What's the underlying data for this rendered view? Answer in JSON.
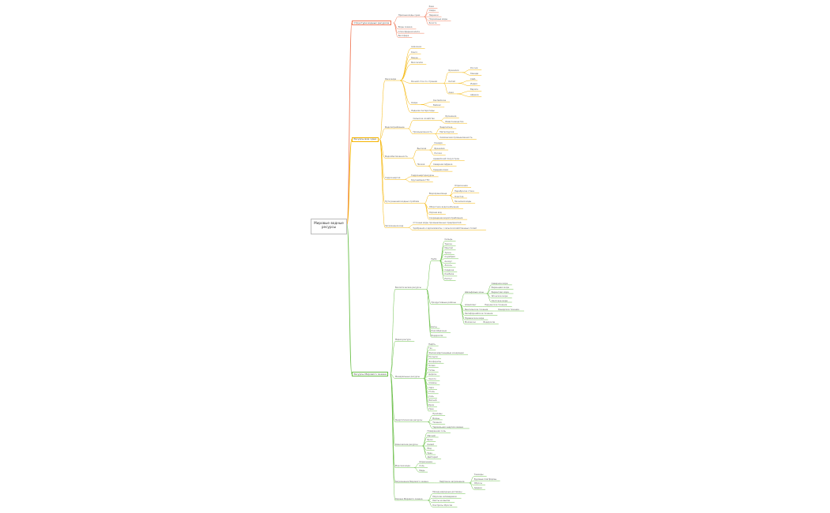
{
  "root": "Мировые водные ресурсы",
  "colors": {
    "branch_red": "#f07b5a",
    "branch_orange": "#f5b400",
    "branch_green": "#6cc04a"
  },
  "branches": [
    {
      "label": "Структура водных ресурсов",
      "color": "#f07b5a",
      "children": [
        {
          "label": "Пресные воды суши",
          "children": [
            {
              "label": "Реки"
            },
            {
              "label": "Озёра"
            },
            {
              "label": "Ледники"
            },
            {
              "label": "Подземные воды"
            },
            {
              "label": "Болота"
            }
          ]
        },
        {
          "label": "Воды океана"
        },
        {
          "label": "Атмосферная влага"
        },
        {
          "label": "Биосфера"
        }
      ]
    },
    {
      "label": "Ресурсы вод суши",
      "color": "#f5b400",
      "children": [
        {
          "label": "Реки мира",
          "children": [
            {
              "label": "Амазонка"
            },
            {
              "label": "Конго"
            },
            {
              "label": "Янцзы"
            },
            {
              "label": "Миссисипи"
            },
            {
              "label": "Речной сток по странам",
              "children": [
                {
                  "label": "Бразилия",
                  "children": [
                    {
                      "label": "Россия"
                    },
                    {
                      "label": "Канада"
                    }
                  ]
                },
                {
                  "label": "Китай",
                  "children": [
                    {
                      "label": "США"
                    },
                    {
                      "label": "Индия"
                    }
                  ]
                },
                {
                  "label": "Азия",
                  "children": [
                    {
                      "label": "Европа"
                    },
                    {
                      "label": "Африка"
                    }
                  ]
                }
              ]
            },
            {
              "label": "Озёра",
              "children": [
                {
                  "label": "Каспийское"
                },
                {
                  "label": "Байкал"
                }
              ]
            },
            {
              "label": "Ледники Антарктиды"
            }
          ]
        },
        {
          "label": "Водопотребление",
          "children": [
            {
              "label": "Сельское хозяйство",
              "children": [
                {
                  "label": "Орошение"
                },
                {
                  "label": "Животноводство"
                }
              ]
            },
            {
              "label": "Промышленность",
              "children": [
                {
                  "label": "Энергетика"
                },
                {
                  "label": "Металлургия"
                },
                {
                  "label": "Химическая промышленность"
                }
              ]
            }
          ]
        },
        {
          "label": "Водообеспеченность",
          "children": [
            {
              "label": "Высокая",
              "children": [
                {
                  "label": "Канада"
                },
                {
                  "label": "Бразилия"
                },
                {
                  "label": "Россия"
                }
              ]
            },
            {
              "label": "Низкая",
              "children": [
                {
                  "label": "Аравийский полуостров"
                },
                {
                  "label": "Северная Африка"
                },
                {
                  "label": "Средняя Азия"
                }
              ]
            }
          ]
        },
        {
          "label": "Гидроэнергия",
          "children": [
            {
              "label": "Гидроэнергоресурсы"
            },
            {
              "label": "Крупнейшие ГЭС"
            }
          ]
        },
        {
          "label": "Пути решения водных проблем",
          "children": [
            {
              "label": "Водохранилища",
              "children": [
                {
                  "label": "Опреснение"
                },
                {
                  "label": "Переброска стока"
                },
                {
                  "label": "Очистка"
                },
                {
                  "label": "Экономия воды"
                }
              ]
            },
            {
              "label": "Оборотное водоснабжение"
            },
            {
              "label": "Охрана вод"
            },
            {
              "label": "Сокращение водопотребления"
            }
          ]
        },
        {
          "label": "Загрязнение вод",
          "children": [
            {
              "label": "Сточные воды промышленных предприятий"
            },
            {
              "label": "Удобрения и ядохимикаты с сельскохозяйственных полей"
            }
          ]
        }
      ]
    },
    {
      "label": "Ресурсы Мирового океана",
      "color": "#6cc04a",
      "children": [
        {
          "label": "Биологические ресурсы",
          "children": [
            {
              "label": "Рыба",
              "children": [
                {
                  "label": "Сельдь"
                },
                {
                  "label": "Треска"
                },
                {
                  "label": "Минтай"
                },
                {
                  "label": "Тунец"
                },
                {
                  "label": "Скумбрия"
                },
                {
                  "label": "Анчоус"
                },
                {
                  "label": "Лосось"
                },
                {
                  "label": "Сардина"
                },
                {
                  "label": "Камбала"
                },
                {
                  "label": "Палтус"
                }
              ]
            },
            {
              "label": "Продуктивные районы",
              "children": [
                {
                  "label": "Шельфовые зоны",
                  "children": [
                    {
                      "label": "Северное море"
                    },
                    {
                      "label": "Баренцево море"
                    },
                    {
                      "label": "Берингово море"
                    },
                    {
                      "label": "Японское море"
                    },
                    {
                      "label": "Охотское море"
                    }
                  ]
                },
                {
                  "label": "Апвеллинг",
                  "children": [
                    {
                      "label": "Перуанское течение"
                    }
                  ]
                },
                {
                  "label": "Бенгельское течение",
                  "children": [
                    {
                      "label": "Канарское течение"
                    }
                  ]
                },
                {
                  "label": "Калифорнийское течение"
                },
                {
                  "label": "Норвежское море"
                },
                {
                  "label": "Моллюски",
                  "children": [
                    {
                      "label": "Водоросли"
                    }
                  ]
                }
              ]
            },
            {
              "label": "Киты"
            },
            {
              "label": "Ракообразные"
            },
            {
              "label": "Водоросли"
            }
          ]
        },
        {
          "label": "Марикультура"
        },
        {
          "label": "Минеральные ресурсы",
          "children": [
            {
              "label": "Нефть"
            },
            {
              "label": "Газ"
            },
            {
              "label": "Железомарганцевые конкреции"
            },
            {
              "label": "Россыпи"
            },
            {
              "label": "Фосфориты"
            },
            {
              "label": "Олово"
            },
            {
              "label": "Титан"
            },
            {
              "label": "Циркон"
            },
            {
              "label": "Золото"
            },
            {
              "label": "Алмазы"
            },
            {
              "label": "Сера"
            },
            {
              "label": "Уголь"
            },
            {
              "label": "Соль"
            },
            {
              "label": "Магний"
            },
            {
              "label": "Бром"
            },
            {
              "label": "Уран"
            }
          ]
        },
        {
          "label": "Энергетические ресурсы",
          "children": [
            {
              "label": "Приливы"
            },
            {
              "label": "Волны"
            },
            {
              "label": "Течения"
            },
            {
              "label": "Термальная энергия океана"
            }
          ]
        },
        {
          "label": "Химические ресурсы",
          "children": [
            {
              "label": "Поваренная соль"
            },
            {
              "label": "Магний"
            },
            {
              "label": "Бром"
            },
            {
              "label": "Калий"
            },
            {
              "label": "Йод"
            },
            {
              "label": "Уран"
            },
            {
              "label": "Дейтерий"
            }
          ]
        },
        {
          "label": "Морская вода",
          "children": [
            {
              "label": "Опреснение"
            },
            {
              "label": "Соль"
            },
            {
              "label": "Медь"
            }
          ]
        },
        {
          "label": "Загрязнение Мирового океана",
          "children": [
            {
              "label": "Нефтяное загрязнение",
              "children": [
                {
                  "label": "Танкеры"
                },
                {
                  "label": "Буровые платформы"
                },
                {
                  "label": "Сбросы"
                },
                {
                  "label": "Аварии"
                }
              ]
            }
          ]
        },
        {
          "label": "Охрана Мирового океана",
          "children": [
            {
              "label": "Международные договоры"
            },
            {
              "label": "Морские заповедники"
            },
            {
              "label": "Квоты на вылов"
            },
            {
              "label": "Контроль сбросов"
            }
          ]
        }
      ]
    }
  ]
}
